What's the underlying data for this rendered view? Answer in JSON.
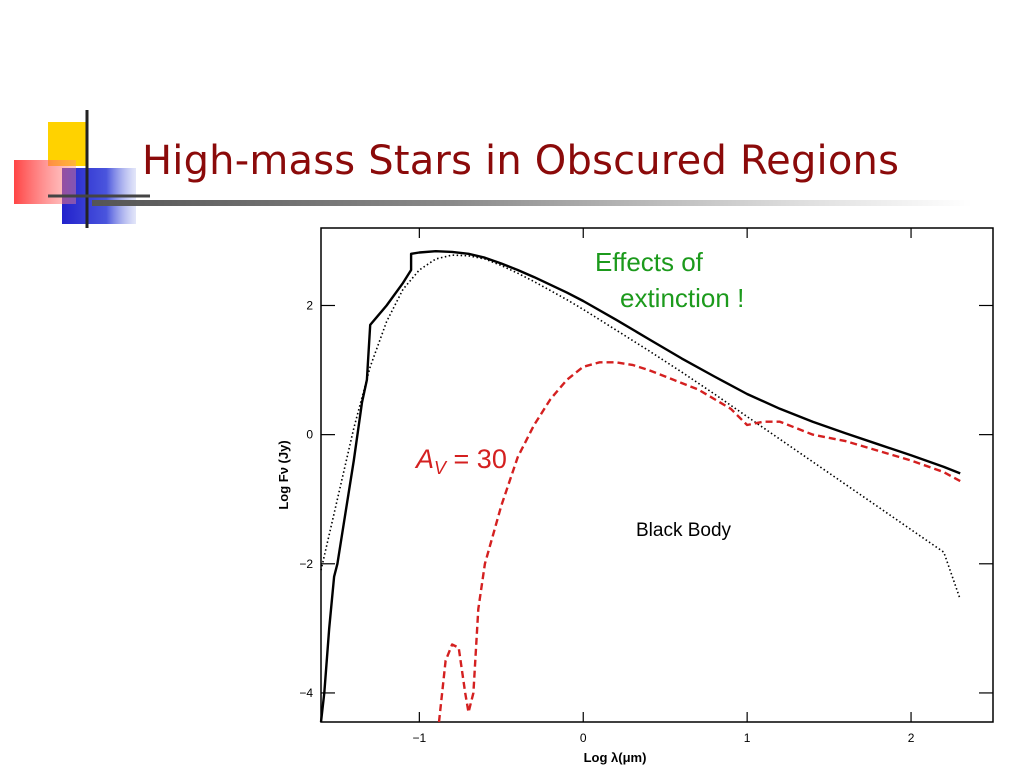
{
  "slide": {
    "title": "High-mass Stars in Obscured Regions"
  },
  "chart_data": {
    "type": "line",
    "xlabel": "Log λ(μm)",
    "ylabel": "Log Fν  (Jy)",
    "xlim": [
      -1.6,
      2.5
    ],
    "ylim": [
      -4.45,
      3.2
    ],
    "xticks": [
      -1,
      0,
      1,
      2
    ],
    "xtick_labels": [
      "−1",
      "0",
      "1",
      "2"
    ],
    "yticks": [
      -4,
      -2,
      0,
      2
    ],
    "ytick_labels": [
      "−4",
      "−2",
      "0",
      "2"
    ],
    "grid": false,
    "annotations": {
      "effects_line1": "Effects of",
      "effects_line2": "extinction !",
      "av_symbol": "A",
      "av_subscript": "V",
      "av_value": " = 30",
      "black_body": "Black Body"
    },
    "colors": {
      "solid": "#000000",
      "dotted": "#000000",
      "dashed": "#d42020",
      "annotation_green": "#1c9a1c",
      "annotation_red": "#d42020"
    },
    "series": [
      {
        "style": "solid",
        "x": [
          -1.6,
          -1.58,
          -1.55,
          -1.52,
          -1.5,
          -1.45,
          -1.4,
          -1.35,
          -1.32,
          -1.3,
          -1.25,
          -1.2,
          -1.1,
          -1.05,
          -1.05,
          -1.0,
          -0.9,
          -0.8,
          -0.7,
          -0.6,
          -0.5,
          -0.4,
          -0.3,
          -0.2,
          -0.1,
          0.0,
          0.2,
          0.4,
          0.6,
          0.8,
          1.0,
          1.2,
          1.4,
          1.6,
          1.8,
          2.0,
          2.2,
          2.3
        ],
        "y": [
          -4.45,
          -4.0,
          -3.0,
          -2.2,
          -2.0,
          -1.2,
          -0.4,
          0.5,
          0.85,
          1.7,
          1.85,
          2.0,
          2.35,
          2.55,
          2.8,
          2.82,
          2.84,
          2.83,
          2.8,
          2.74,
          2.65,
          2.55,
          2.44,
          2.32,
          2.2,
          2.07,
          1.78,
          1.48,
          1.18,
          0.9,
          0.63,
          0.4,
          0.2,
          0.02,
          -0.15,
          -0.32,
          -0.5,
          -0.6
        ]
      },
      {
        "style": "dotted",
        "x": [
          -1.6,
          -1.5,
          -1.4,
          -1.3,
          -1.2,
          -1.1,
          -1.0,
          -0.9,
          -0.8,
          -0.7,
          -0.6,
          -0.5,
          -0.4,
          -0.3,
          -0.2,
          -0.1,
          0.0,
          0.2,
          0.4,
          0.6,
          0.8,
          1.0,
          1.2,
          1.4,
          1.6,
          1.8,
          2.0,
          2.2,
          2.3
        ],
        "y": [
          -2.1,
          -1.0,
          0.1,
          1.05,
          1.75,
          2.25,
          2.55,
          2.72,
          2.78,
          2.77,
          2.72,
          2.62,
          2.5,
          2.37,
          2.23,
          2.09,
          1.94,
          1.62,
          1.3,
          0.97,
          0.63,
          0.28,
          -0.07,
          -0.42,
          -0.77,
          -1.12,
          -1.47,
          -1.82,
          -2.55
        ]
      },
      {
        "style": "dashed",
        "x": [
          -0.88,
          -0.84,
          -0.8,
          -0.76,
          -0.72,
          -0.7,
          -0.67,
          -0.64,
          -0.6,
          -0.5,
          -0.4,
          -0.3,
          -0.2,
          -0.1,
          0.0,
          0.1,
          0.2,
          0.3,
          0.4,
          0.5,
          0.6,
          0.7,
          0.8,
          0.9,
          1.0,
          1.1,
          1.2,
          1.4,
          1.6,
          1.8,
          2.0,
          2.2,
          2.3
        ],
        "y": [
          -4.45,
          -3.5,
          -3.25,
          -3.3,
          -4.0,
          -4.3,
          -4.0,
          -2.7,
          -2.0,
          -1.1,
          -0.35,
          0.15,
          0.55,
          0.85,
          1.05,
          1.12,
          1.12,
          1.08,
          1.0,
          0.9,
          0.8,
          0.7,
          0.55,
          0.4,
          0.15,
          0.2,
          0.2,
          0.0,
          -0.1,
          -0.25,
          -0.4,
          -0.58,
          -0.72
        ]
      }
    ]
  }
}
